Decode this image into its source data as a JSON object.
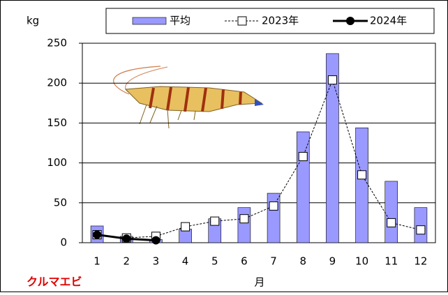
{
  "chart_data": {
    "type": "bar",
    "y_unit": "kg",
    "x_label": "月",
    "species": "クルマエビ",
    "categories": [
      "1",
      "2",
      "3",
      "4",
      "5",
      "6",
      "7",
      "8",
      "9",
      "10",
      "11",
      "12"
    ],
    "series": [
      {
        "name": "平均",
        "type": "bar",
        "color": "#9999ff",
        "values": [
          21,
          8,
          4,
          17,
          30,
          44,
          62,
          139,
          237,
          144,
          77,
          44
        ]
      },
      {
        "name": "2023年",
        "type": "line",
        "marker": "square",
        "color": "#000000",
        "values": [
          10,
          6,
          8,
          20,
          27,
          30,
          46,
          108,
          204,
          85,
          25,
          16
        ]
      },
      {
        "name": "2024年",
        "type": "line",
        "marker": "circle",
        "color": "#000000",
        "values": [
          10,
          5,
          3,
          null,
          null,
          null,
          null,
          null,
          null,
          null,
          null,
          null
        ]
      }
    ],
    "ylim": [
      0,
      250
    ],
    "yticks": [
      0,
      50,
      100,
      150,
      200,
      250
    ],
    "grid": true
  }
}
